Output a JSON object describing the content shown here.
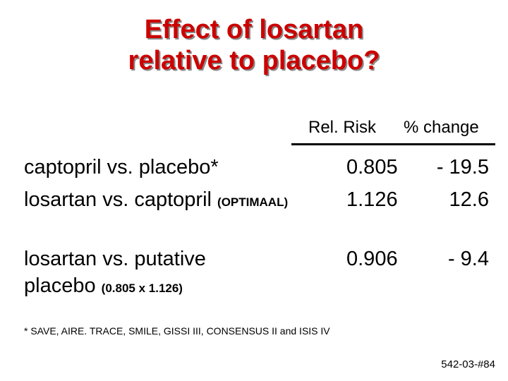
{
  "title": {
    "line1": "Effect of losartan",
    "line2": "relative to placebo?"
  },
  "table": {
    "headers": {
      "rel_risk": "Rel. Risk",
      "pct_change": "% change"
    },
    "rows": [
      {
        "label": "captopril vs. placebo*",
        "note": "",
        "rel_risk": "0.805",
        "pct_change": "- 19.5"
      },
      {
        "label": "losartan vs. captopril",
        "note": "(OPTIMAAL)",
        "rel_risk": "1.126",
        "pct_change": "12.6"
      },
      {
        "label_line1": "losartan vs. putative",
        "label_line2": "placebo",
        "note": "(0.805 x 1.126)",
        "rel_risk": "0.906",
        "pct_change": "- 9.4"
      }
    ]
  },
  "footnote": "* SAVE, AIRE. TRACE, SMILE, GISSI III, CONSENSUS II and ISIS IV",
  "slide_id": "542-03-#84",
  "colors": {
    "title": "#cc0000",
    "title_shadow": "#8a8a8a",
    "text": "#000000",
    "background": "#ffffff"
  }
}
